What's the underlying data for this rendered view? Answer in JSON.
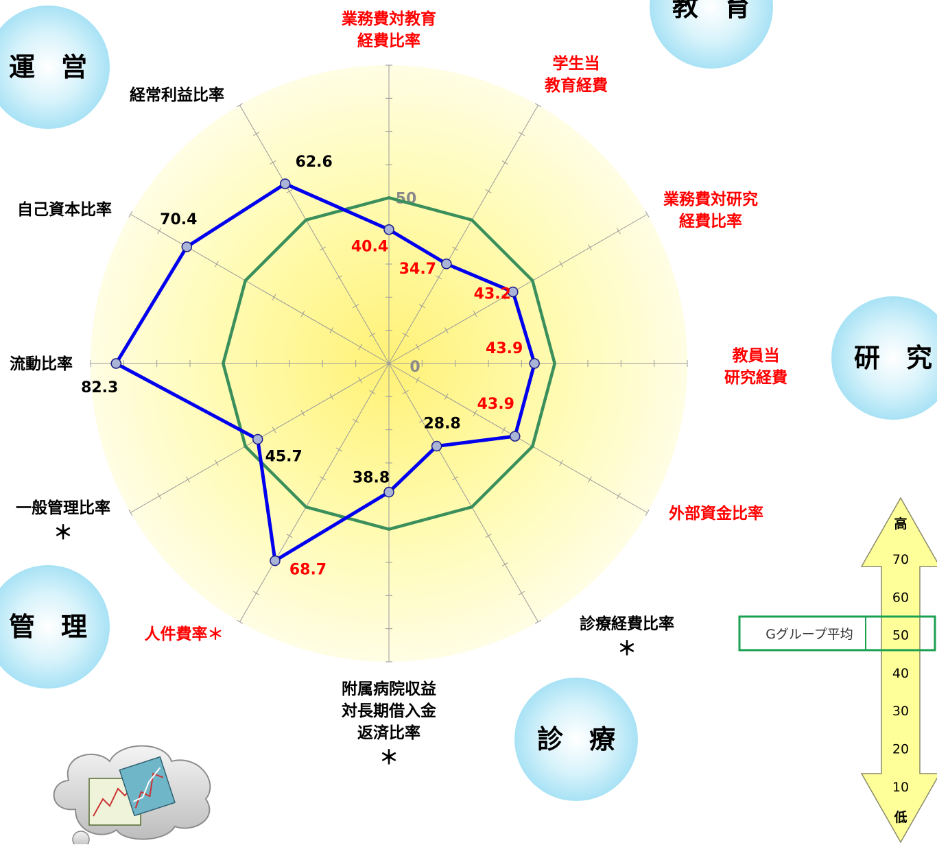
{
  "chart_data": {
    "type": "radar",
    "title": "",
    "rlim": [
      0,
      90
    ],
    "ring_labels": [
      "0",
      "50"
    ],
    "axes": [
      {
        "label": [
          "業務費対教育",
          "経費比率"
        ],
        "color": "#ff0000",
        "value": 40.4,
        "mark": ""
      },
      {
        "label": [
          "学生当",
          "教育経費"
        ],
        "color": "#ff0000",
        "value": 34.7,
        "mark": ""
      },
      {
        "label": [
          "業務費対研究",
          "経費比率"
        ],
        "color": "#ff0000",
        "value": 43.2,
        "mark": ""
      },
      {
        "label": [
          "教員当",
          "研究経費"
        ],
        "color": "#ff0000",
        "value": 43.9,
        "mark": ""
      },
      {
        "label": [
          "外部資金比率"
        ],
        "color": "#ff0000",
        "value": 43.9,
        "mark": ""
      },
      {
        "label": [
          "診療経費比率"
        ],
        "color": "#000000",
        "value": 28.8,
        "mark": "＊"
      },
      {
        "label": [
          "附属病院収益",
          "対長期借入金",
          "返済比率"
        ],
        "color": "#000000",
        "value": 38.8,
        "mark": "＊"
      },
      {
        "label": [
          "人件費率＊"
        ],
        "color": "#ff0000",
        "value": 68.7,
        "mark": ""
      },
      {
        "label": [
          "一般管理比率"
        ],
        "color": "#000000",
        "value": 45.7,
        "mark": "＊"
      },
      {
        "label": [
          "流動比率"
        ],
        "color": "#000000",
        "value": 82.3,
        "mark": ""
      },
      {
        "label": [
          "自己資本比率"
        ],
        "color": "#000000",
        "value": 70.4,
        "mark": ""
      },
      {
        "label": [
          "経常利益比率"
        ],
        "color": "#000000",
        "value": 62.6,
        "mark": ""
      }
    ],
    "series": [
      {
        "values": [
          40.4,
          34.7,
          43.2,
          43.9,
          43.9,
          28.8,
          38.8,
          68.7,
          45.7,
          82.3,
          70.4,
          62.6
        ],
        "color": "#0000ee"
      },
      {
        "values": [
          50,
          50,
          50,
          50,
          50,
          50,
          50,
          50,
          50,
          50,
          50,
          50
        ],
        "color": "#3a8f5c"
      }
    ],
    "value_label_colors": [
      "#ff0000",
      "#ff0000",
      "#ff0000",
      "#ff0000",
      "#ff0000",
      "#000000",
      "#000000",
      "#ff0000",
      "#000000",
      "#000000",
      "#000000",
      "#000000"
    ]
  },
  "categories": [
    {
      "label": "教　育",
      "id": "education"
    },
    {
      "label": "運　営",
      "id": "management"
    },
    {
      "label": "研　究",
      "id": "research"
    },
    {
      "label": "管　理",
      "id": "administration"
    },
    {
      "label": "診　療",
      "id": "medical"
    }
  ],
  "scale": {
    "top_label": "高",
    "bottom_label": "低",
    "ticks": [
      "70",
      "60",
      "50",
      "40",
      "30",
      "20",
      "10"
    ],
    "average_label": "Gグループ平均"
  },
  "colors": {
    "average_box": "#1aa050",
    "arrow_fill": "#ffff99",
    "bubble": "#aee6f7"
  },
  "icons": [
    "chart-cloud-icon"
  ]
}
